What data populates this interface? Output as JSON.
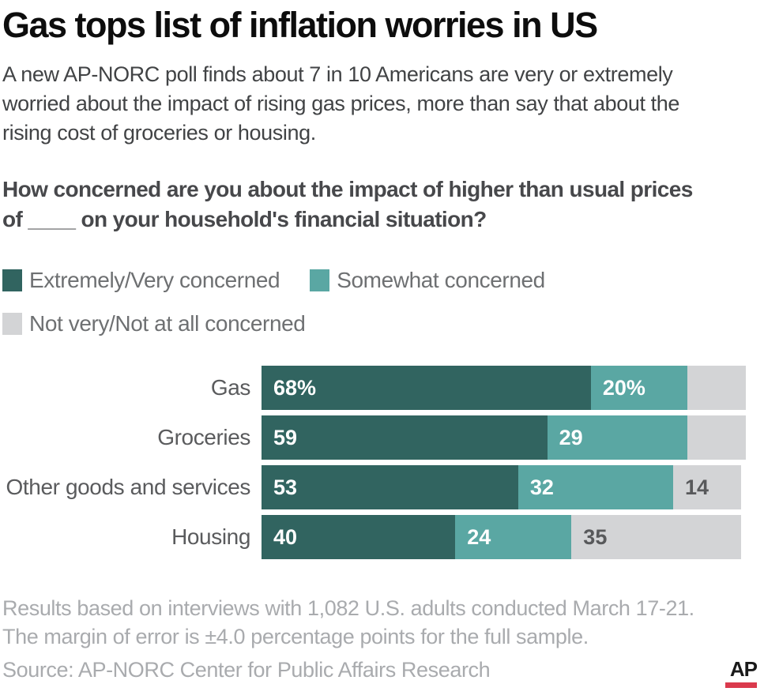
{
  "title": "Gas tops list of inflation worries in US",
  "intro": "A new AP-NORC poll finds about 7 in 10 Americans are very or extremely\nworried about the impact of rising gas prices, more than say that about the\nrising cost of groceries or housing.",
  "question": "How concerned are you about the impact of higher than usual prices\nof ____ on your household's financial situation?",
  "colors": {
    "extremely_very": "#316460",
    "somewhat": "#5aa7a3",
    "not_very": "#d3d4d6",
    "ap_red": "#da3a4d",
    "ap_black": "#1a1a1a"
  },
  "legend": [
    {
      "label": "Extremely/Very concerned",
      "color": "#316460"
    },
    {
      "label": "Somewhat concerned",
      "color": "#5aa7a3"
    },
    {
      "label": "Not very/Not at all concerned",
      "color": "#d3d4d6"
    }
  ],
  "chart_data": {
    "type": "bar",
    "orientation": "horizontal-stacked",
    "categories": [
      "Gas",
      "Groceries",
      "Other goods and services",
      "Housing"
    ],
    "series": [
      {
        "name": "Extremely/Very concerned",
        "color": "#316460",
        "values": [
          68,
          59,
          53,
          40
        ],
        "labels": [
          "68%",
          "59",
          "53",
          "40"
        ],
        "label_color": "#ffffff"
      },
      {
        "name": "Somewhat concerned",
        "color": "#5aa7a3",
        "values": [
          20,
          29,
          32,
          24
        ],
        "labels": [
          "20%",
          "29",
          "32",
          "24"
        ],
        "label_color": "#ffffff"
      },
      {
        "name": "Not very/Not at all concerned",
        "color": "#d3d4d6",
        "values": [
          12,
          12,
          14,
          35
        ],
        "labels": [
          "",
          "",
          "14",
          "35"
        ],
        "label_color": "#58595b"
      }
    ],
    "xlim": [
      0,
      100
    ],
    "grid": false,
    "legend_position": "top"
  },
  "footer": {
    "note": "Results based on interviews with 1,082 U.S. adults conducted March 17-21.\nThe margin of error is ±4.0 percentage points for the full sample.",
    "source": "Source: AP-NORC Center for Public Affairs Research",
    "logo_text": "AP"
  }
}
